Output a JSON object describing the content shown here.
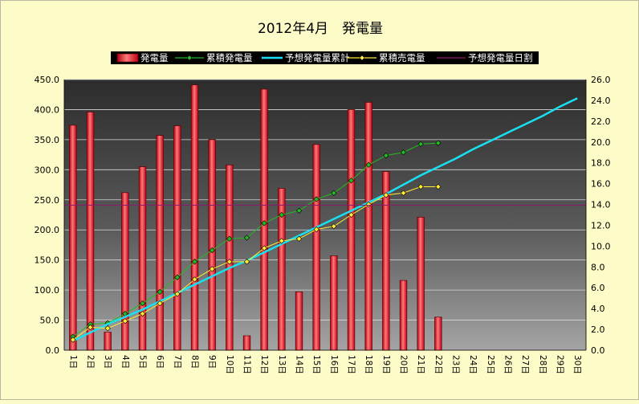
{
  "chart_data": {
    "type": "bar",
    "title": "2012年4月　発電量",
    "categories": [
      "1日",
      "2日",
      "3日",
      "4日",
      "5日",
      "6日",
      "7日",
      "8日",
      "9日",
      "10日",
      "11日",
      "12日",
      "13日",
      "14日",
      "15日",
      "16日",
      "17日",
      "18日",
      "19日",
      "20日",
      "21日",
      "22日",
      "23日",
      "24日",
      "25日",
      "26日",
      "27日",
      "28日",
      "29日",
      "30日"
    ],
    "y_left_ticks": [
      "0.0",
      "50.0",
      "100.0",
      "150.0",
      "200.0",
      "250.0",
      "300.0",
      "350.0",
      "400.0",
      "450.0"
    ],
    "y_right_ticks": [
      "0.0",
      "2.0",
      "4.0",
      "6.0",
      "8.0",
      "10.0",
      "12.0",
      "14.0",
      "16.0",
      "18.0",
      "20.0",
      "22.0",
      "24.0",
      "26.0"
    ],
    "ylim_left": [
      0,
      450
    ],
    "ylim_right": [
      0,
      26
    ],
    "legend_position": "top",
    "grid": true,
    "series": [
      {
        "name": "発電量",
        "kind": "bar",
        "axis": "left",
        "color": "#ff3030",
        "values": [
          374,
          396,
          30,
          262,
          305,
          357,
          373,
          441,
          350,
          308,
          24,
          434,
          269,
          97,
          342,
          157,
          400,
          412,
          297,
          116,
          221,
          55,
          null,
          null,
          null,
          null,
          null,
          null,
          null,
          null
        ]
      },
      {
        "name": "累積発電量",
        "kind": "line",
        "axis": "right",
        "color": "#22bb22",
        "marker": "diamond",
        "values": [
          1.3,
          2.5,
          2.6,
          3.5,
          4.5,
          5.6,
          7.0,
          8.5,
          9.6,
          10.7,
          10.8,
          12.2,
          13.0,
          13.4,
          14.5,
          15.1,
          16.3,
          17.8,
          18.7,
          19.0,
          19.8,
          19.9,
          null,
          null,
          null,
          null,
          null,
          null,
          null,
          null
        ]
      },
      {
        "name": "予想発電量累計",
        "kind": "line",
        "axis": "right",
        "color": "#19e0f0",
        "values": [
          0.9,
          1.7,
          2.5,
          3.2,
          3.9,
          4.7,
          5.5,
          6.3,
          7.1,
          7.9,
          8.6,
          9.4,
          10.2,
          11.0,
          11.8,
          12.6,
          13.4,
          14.2,
          15.0,
          15.9,
          16.8,
          17.6,
          18.4,
          19.3,
          20.1,
          20.9,
          21.7,
          22.5,
          23.4,
          24.2
        ]
      },
      {
        "name": "累積売電量",
        "kind": "line",
        "axis": "right",
        "color": "#ffee33",
        "marker": "diamond",
        "values": [
          1.0,
          2.2,
          2.1,
          2.8,
          3.5,
          4.5,
          5.4,
          6.8,
          7.8,
          8.5,
          8.5,
          9.8,
          10.5,
          10.7,
          11.6,
          11.9,
          13.0,
          14.0,
          14.9,
          15.1,
          15.7,
          15.7,
          null,
          null,
          null,
          null,
          null,
          null,
          null,
          null
        ]
      },
      {
        "name": "予想発電量日割",
        "kind": "line",
        "axis": "left",
        "color": "#8a1a6a",
        "values": [
          241,
          241,
          241,
          241,
          241,
          241,
          241,
          241,
          241,
          241,
          241,
          241,
          241,
          241,
          241,
          241,
          241,
          241,
          241,
          241,
          241,
          241,
          241,
          241,
          241,
          241,
          241,
          241,
          241,
          241
        ]
      }
    ]
  }
}
